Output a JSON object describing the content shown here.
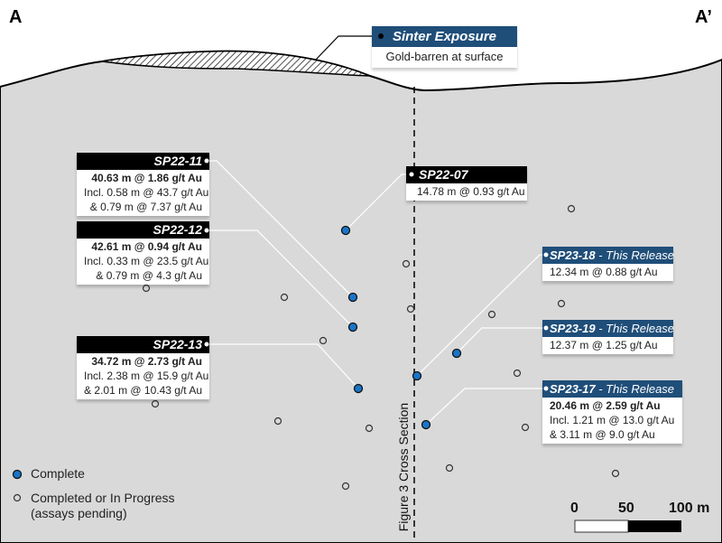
{
  "section": {
    "left_label": "A",
    "right_label": "A’",
    "vertical_label": "Figure 3 Cross Section"
  },
  "sinter": {
    "title": "Sinter Exposure",
    "subtitle": "Gold-barren at surface"
  },
  "holes": [
    {
      "id": "SP22-11",
      "lines": [
        "40.63 m @ 1.86 g/t Au",
        "Incl. 0.58 m @ 43.7 g/t Au",
        "& 0.79 m @ 7.37 g/t Au"
      ]
    },
    {
      "id": "SP22-12",
      "lines": [
        "42.61 m @ 0.94 g/t Au",
        "Incl. 0.33 m @ 23.5 g/t Au",
        "& 0.79 m @ 4.3 g/t Au"
      ]
    },
    {
      "id": "SP22-13",
      "lines": [
        "34.72 m @ 2.73 g/t Au",
        "Incl. 2.38 m @ 15.9 g/t Au",
        "& 2.01 m @ 10.43 g/t Au"
      ]
    },
    {
      "id": "SP22-07",
      "lines": [
        "14.78 m @ 0.93 g/t Au"
      ]
    },
    {
      "id": "SP23-18",
      "tag": "- This Release",
      "lines": [
        "12.34 m @ 0.88 g/t Au"
      ]
    },
    {
      "id": "SP23-19",
      "tag": "- This Release",
      "lines": [
        "12.37 m @ 1.25 g/t Au"
      ]
    },
    {
      "id": "SP23-17",
      "tag": "- This Release",
      "lines": [
        "20.46 m @ 2.59 g/t Au",
        "Incl. 1.21 m @ 13.0 g/t Au",
        "& 3.11 m @ 9.0 g/t Au"
      ]
    }
  ],
  "legend": {
    "complete": "Complete",
    "pending_1": "Completed or In Progress",
    "pending_2": "(assays pending)"
  },
  "scale": {
    "l0": "0",
    "l1": "50",
    "l2": "100 m"
  },
  "colors": {
    "ground": "#d9d9d9",
    "complete": "#1a75c9",
    "header_blue": "#1f4e79"
  }
}
